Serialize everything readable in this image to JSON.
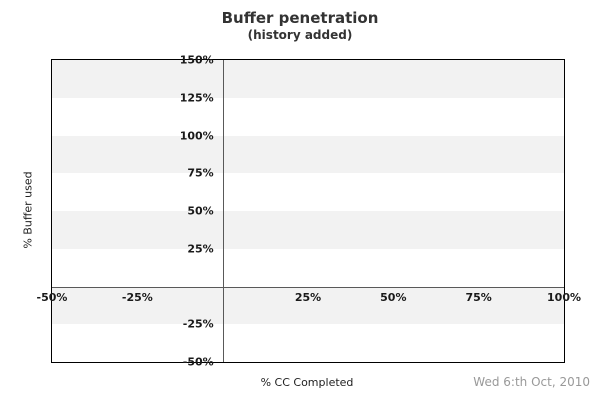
{
  "header": {
    "title": "Buffer penetration",
    "subtitle": "(history added)"
  },
  "footer": {
    "date": "Wed 6:th Oct, 2010"
  },
  "chart_data": {
    "type": "scatter",
    "title": "Buffer penetration",
    "subtitle": "(history added)",
    "xlabel": "% CC Completed",
    "ylabel": "% Buffer used",
    "xlim": [
      -50,
      100
    ],
    "ylim": [
      -50,
      150
    ],
    "xticks": [
      {
        "value": -50,
        "label": "-50%"
      },
      {
        "value": -25,
        "label": "-25%"
      },
      {
        "value": 25,
        "label": "25%"
      },
      {
        "value": 50,
        "label": "50%"
      },
      {
        "value": 75,
        "label": "75%"
      },
      {
        "value": 100,
        "label": "100%"
      }
    ],
    "yticks": [
      {
        "value": 150,
        "label": "150%"
      },
      {
        "value": 125,
        "label": "125%"
      },
      {
        "value": 100,
        "label": "100%"
      },
      {
        "value": 75,
        "label": "75%"
      },
      {
        "value": 50,
        "label": "50%"
      },
      {
        "value": 25,
        "label": "25%"
      },
      {
        "value": -25,
        "label": "-25%"
      },
      {
        "value": -50,
        "label": "-50%"
      }
    ],
    "bands": [
      [
        -25,
        0
      ],
      [
        25,
        50
      ],
      [
        75,
        100
      ],
      [
        125,
        150
      ]
    ],
    "band_color": "#f2f2f2",
    "grid": "zero-lines-only",
    "legend": "none",
    "series": [],
    "colors": {
      "plot_border": "#000000",
      "zero_line": "#595959",
      "tick_text": "#1a1a1a",
      "title_text": "#333333",
      "date_text": "#999999"
    }
  }
}
